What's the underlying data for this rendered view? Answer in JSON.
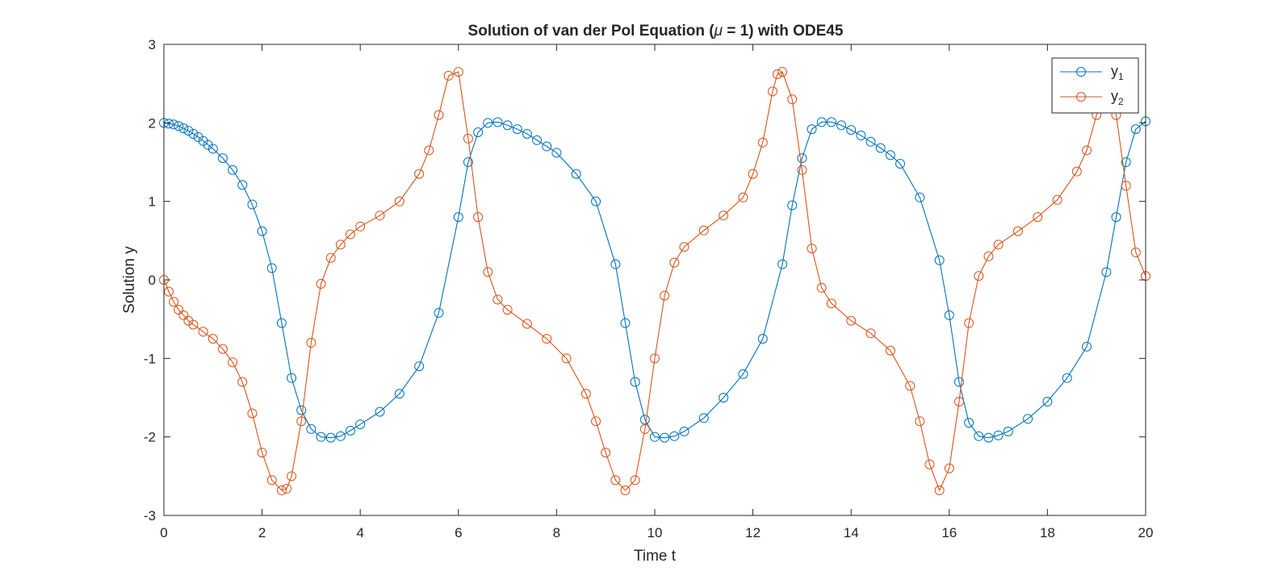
{
  "chart_data": {
    "type": "line",
    "title_main": "Solution of van der Pol Equation (",
    "title_mu": "μ",
    "title_rest": " = 1) with ODE45",
    "xlabel": "Time t",
    "ylabel": "Solution y",
    "xlim": [
      0,
      20
    ],
    "ylim": [
      -3,
      3
    ],
    "xticks": [
      0,
      2,
      4,
      6,
      8,
      10,
      12,
      14,
      16,
      18,
      20
    ],
    "yticks": [
      -3,
      -2,
      -1,
      0,
      1,
      2,
      3
    ],
    "xtick_labels": [
      "0",
      "2",
      "4",
      "6",
      "8",
      "10",
      "12",
      "14",
      "16",
      "18",
      "20"
    ],
    "ytick_labels": [
      "-3",
      "-2",
      "-1",
      "0",
      "1",
      "2",
      "3"
    ],
    "marker": "circle",
    "legend_position": "top-right",
    "grid": false,
    "series": [
      {
        "name": "y",
        "subscript": "1",
        "color": "#0072BD",
        "x": [
          0,
          0.1,
          0.2,
          0.3,
          0.4,
          0.5,
          0.6,
          0.7,
          0.8,
          0.9,
          1.0,
          1.2,
          1.4,
          1.6,
          1.8,
          2.0,
          2.2,
          2.4,
          2.6,
          2.8,
          3.0,
          3.2,
          3.4,
          3.6,
          3.8,
          4.0,
          4.4,
          4.8,
          5.2,
          5.6,
          6.0,
          6.2,
          6.4,
          6.6,
          6.8,
          7.0,
          7.2,
          7.4,
          7.6,
          7.8,
          8.0,
          8.4,
          8.8,
          9.2,
          9.4,
          9.6,
          9.8,
          10.0,
          10.2,
          10.4,
          10.6,
          11.0,
          11.4,
          11.8,
          12.2,
          12.6,
          12.8,
          13.0,
          13.2,
          13.4,
          13.6,
          13.8,
          14.0,
          14.2,
          14.4,
          14.6,
          14.8,
          15.0,
          15.4,
          15.8,
          16.0,
          16.2,
          16.4,
          16.6,
          16.8,
          17.0,
          17.2,
          17.6,
          18.0,
          18.4,
          18.8,
          19.2,
          19.4,
          19.6,
          19.8,
          20.0
        ],
        "y": [
          2.0,
          1.99,
          1.98,
          1.96,
          1.93,
          1.9,
          1.86,
          1.82,
          1.77,
          1.72,
          1.67,
          1.55,
          1.4,
          1.21,
          0.96,
          0.62,
          0.15,
          -0.55,
          -1.25,
          -1.66,
          -1.9,
          -2.0,
          -2.01,
          -1.99,
          -1.92,
          -1.84,
          -1.68,
          -1.45,
          -1.1,
          -0.42,
          0.8,
          1.5,
          1.88,
          2.0,
          2.01,
          1.97,
          1.92,
          1.86,
          1.78,
          1.7,
          1.62,
          1.35,
          1.0,
          0.2,
          -0.55,
          -1.3,
          -1.78,
          -2.0,
          -2.01,
          -1.99,
          -1.93,
          -1.76,
          -1.5,
          -1.2,
          -0.75,
          0.2,
          0.95,
          1.55,
          1.92,
          2.01,
          2.01,
          1.97,
          1.91,
          1.84,
          1.76,
          1.68,
          1.59,
          1.48,
          1.05,
          0.25,
          -0.45,
          -1.3,
          -1.82,
          -1.99,
          -2.01,
          -1.98,
          -1.93,
          -1.77,
          -1.55,
          -1.25,
          -0.85,
          0.1,
          0.8,
          1.5,
          1.92,
          2.02
        ]
      },
      {
        "name": "y",
        "subscript": "2",
        "color": "#D95319",
        "x": [
          0,
          0.1,
          0.2,
          0.3,
          0.4,
          0.5,
          0.6,
          0.8,
          1.0,
          1.2,
          1.4,
          1.6,
          1.8,
          2.0,
          2.2,
          2.4,
          2.5,
          2.6,
          2.8,
          3.0,
          3.2,
          3.4,
          3.6,
          3.8,
          4.0,
          4.4,
          4.8,
          5.2,
          5.4,
          5.6,
          5.8,
          6.0,
          6.2,
          6.4,
          6.6,
          6.8,
          7.0,
          7.4,
          7.8,
          8.2,
          8.6,
          8.8,
          9.0,
          9.2,
          9.4,
          9.6,
          9.8,
          10.0,
          10.2,
          10.4,
          10.6,
          11.0,
          11.4,
          11.8,
          12.0,
          12.2,
          12.4,
          12.5,
          12.6,
          12.8,
          13.0,
          13.2,
          13.4,
          13.6,
          14.0,
          14.4,
          14.8,
          15.2,
          15.4,
          15.6,
          15.8,
          16.0,
          16.2,
          16.4,
          16.6,
          16.8,
          17.0,
          17.4,
          17.8,
          18.2,
          18.6,
          18.8,
          19.0,
          19.2,
          19.4,
          19.6,
          19.8,
          20.0
        ],
        "y": [
          0.0,
          -0.15,
          -0.28,
          -0.38,
          -0.45,
          -0.52,
          -0.57,
          -0.66,
          -0.75,
          -0.88,
          -1.05,
          -1.3,
          -1.7,
          -2.2,
          -2.55,
          -2.68,
          -2.66,
          -2.5,
          -1.8,
          -0.8,
          -0.05,
          0.28,
          0.45,
          0.58,
          0.68,
          0.82,
          1.0,
          1.35,
          1.65,
          2.1,
          2.6,
          2.65,
          1.8,
          0.8,
          0.1,
          -0.25,
          -0.38,
          -0.56,
          -0.75,
          -1.0,
          -1.45,
          -1.8,
          -2.2,
          -2.55,
          -2.68,
          -2.55,
          -1.9,
          -1.0,
          -0.2,
          0.22,
          0.42,
          0.63,
          0.82,
          1.05,
          1.35,
          1.75,
          2.4,
          2.62,
          2.65,
          2.3,
          1.4,
          0.4,
          -0.1,
          -0.3,
          -0.52,
          -0.68,
          -0.9,
          -1.35,
          -1.8,
          -2.35,
          -2.68,
          -2.4,
          -1.55,
          -0.55,
          0.05,
          0.3,
          0.45,
          0.62,
          0.8,
          1.02,
          1.38,
          1.65,
          2.1,
          2.45,
          2.1,
          1.2,
          0.35,
          0.05
        ]
      }
    ]
  }
}
